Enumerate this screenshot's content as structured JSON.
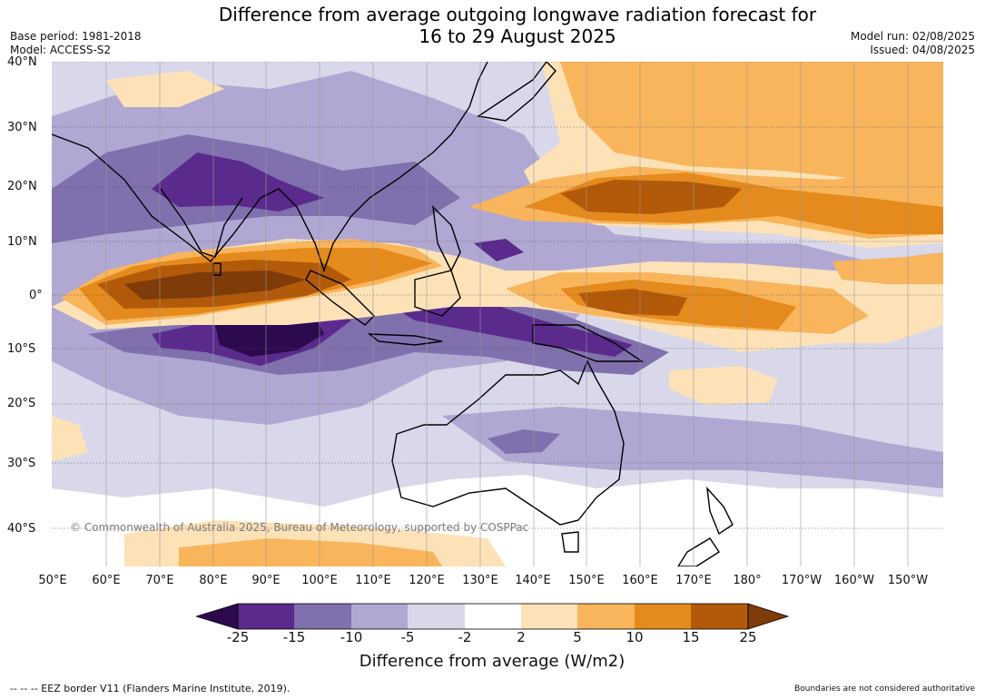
{
  "header": {
    "title_line1": "Difference from average outgoing longwave radiation forecast for",
    "title_line2": "16 to 29 August 2025",
    "base_period": "Base period: 1981-2018",
    "model": "Model: ACCESS-S2",
    "model_run": "Model run: 02/08/2025",
    "issued": "Issued: 04/08/2025"
  },
  "map": {
    "lat_labels": [
      "40°N",
      "30°N",
      "20°N",
      "10°N",
      "0°",
      "10°S",
      "20°S",
      "30°S",
      "40°S"
    ],
    "lon_labels": [
      "50°E",
      "60°E",
      "70°E",
      "80°E",
      "90°E",
      "100°E",
      "110°E",
      "120°E",
      "130°E",
      "140°E",
      "150°E",
      "160°E",
      "170°E",
      "180°",
      "170°W",
      "160°W",
      "150°W"
    ],
    "copyright": "© Commonwealth of Australia 2025, Bureau of Meteorology, supported by COSPPac",
    "palette": {
      "neg25": "#2d0a4e",
      "neg15": "#5a2a8c",
      "neg10": "#8070ad",
      "neg5": "#b0a8d2",
      "neg2": "#d9d8ea",
      "pos2": "#ffffff",
      "pos5": "#fde2b8",
      "pos10": "#f9b55c",
      "pos15": "#e58a1c",
      "pos25": "#b25a0a",
      "pos_max": "#7f3b08"
    }
  },
  "legend": {
    "ticks": [
      "-25",
      "-15",
      "-10",
      "-5",
      "-2",
      "2",
      "5",
      "10",
      "15",
      "25"
    ],
    "label": "Difference from average (W/m2)"
  },
  "footer": {
    "eez_note": "--  --  -- EEZ border V11 (Flanders Marine Institute, 2019).",
    "boundaries_note": "Boundaries are not considered authoritative"
  }
}
